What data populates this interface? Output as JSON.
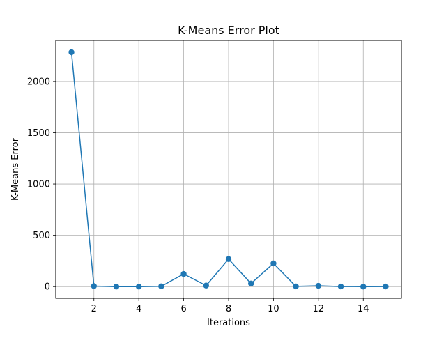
{
  "chart_data": {
    "type": "line",
    "title": "K-Means Error Plot",
    "xlabel": "Iterations",
    "ylabel": "K-Means Error",
    "x": [
      1,
      2,
      3,
      4,
      5,
      6,
      7,
      8,
      9,
      10,
      11,
      12,
      13,
      14,
      15
    ],
    "series": [
      {
        "values": [
          2285,
          5,
          0,
          0,
          3,
          123,
          10,
          268,
          30,
          226,
          2,
          8,
          1,
          0,
          1
        ]
      }
    ],
    "xlim": [
      0.3,
      15.7
    ],
    "ylim": [
      -114,
      2400
    ],
    "xticks": [
      2,
      4,
      6,
      8,
      10,
      12,
      14
    ],
    "yticks": [
      0,
      500,
      1000,
      1500,
      2000
    ],
    "grid": true,
    "legend": "none",
    "colors": {
      "line": "#1f77b4",
      "grid": "#b0b0b0",
      "axes": "#000000"
    }
  }
}
